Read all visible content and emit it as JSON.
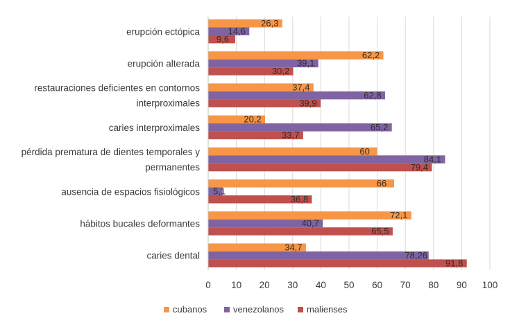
{
  "chart_data": {
    "type": "bar",
    "orientation": "horizontal",
    "categories": [
      "erupción ectópica",
      "erupción alterada",
      "restauraciones deficientes en contornos interproximales",
      "caries interproximales",
      "pérdida prematura de dientes temporales y permanentes",
      "ausencia de espacios fisiológicos",
      "hábitos bucales deformantes",
      "caries dental"
    ],
    "category_lines": [
      [
        "erupción ectópica"
      ],
      [
        "erupción alterada"
      ],
      [
        "restauraciones deficientes en contornos",
        "interproximales"
      ],
      [
        "caries interproximales"
      ],
      [
        "pérdida prematura de dientes temporales y",
        "permanentes"
      ],
      [
        "ausencia de espacios fisiológicos"
      ],
      [
        "hábitos bucales deformantes"
      ],
      [
        "caries dental"
      ]
    ],
    "series": [
      {
        "name": "cubanos",
        "color": "#F79646",
        "values": [
          26.3,
          62.2,
          37.4,
          20.2,
          60,
          66,
          72.1,
          34.7
        ],
        "labels": [
          "26,3",
          "62,2",
          "37,4",
          "20,2",
          "60",
          "66",
          "72,1",
          "34,7"
        ]
      },
      {
        "name": "venezolanos",
        "color": "#8064A2",
        "values": [
          14.6,
          39.1,
          62.8,
          65.2,
          84.1,
          5.1,
          40.7,
          78.26
        ],
        "labels": [
          "14,6",
          "39,1",
          "62,8",
          "65,2",
          "84,1",
          "5,1",
          "40,7",
          "78,26"
        ]
      },
      {
        "name": "malienses",
        "color": "#C0504D",
        "values": [
          9.6,
          30.2,
          39.9,
          33.7,
          79.4,
          36.8,
          65.5,
          91.8
        ],
        "labels": [
          "9,6",
          "30,2",
          "39,9",
          "33,7",
          "79,4",
          "36,8",
          "65,5",
          "91,8"
        ]
      }
    ],
    "xlim": [
      0,
      100
    ],
    "xticks": [
      0,
      10,
      20,
      30,
      40,
      50,
      60,
      70,
      80,
      90,
      100
    ],
    "grid": true,
    "legend_position": "bottom"
  }
}
